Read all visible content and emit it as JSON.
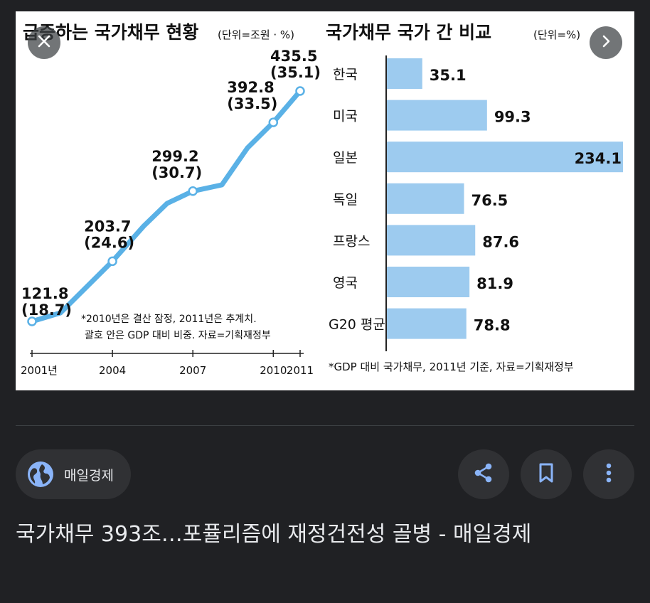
{
  "left_chart": {
    "title": "급증하는 국가채무 현황",
    "unit": "(단위=조원 · %)",
    "note_line1": "*2010년은 결산 잠정, 2011년은 추계치.",
    "note_line2": "괄호 안은 GDP 대비 비중. 자료=기획재정부",
    "x_ticks": [
      "2001년",
      "2004",
      "2007",
      "2010",
      "2011"
    ],
    "points": [
      {
        "year": 2001,
        "value": 121.8,
        "value_label": "121.8",
        "pct_label": "(18.7)"
      },
      {
        "year": 2004,
        "value": 203.7,
        "value_label": "203.7",
        "pct_label": "(24.6)"
      },
      {
        "year": 2007,
        "value": 299.2,
        "value_label": "299.2",
        "pct_label": "(30.7)"
      },
      {
        "year": 2010,
        "value": 392.8,
        "value_label": "392.8",
        "pct_label": "(33.5)"
      },
      {
        "year": 2011,
        "value": 435.5,
        "value_label": "435.5",
        "pct_label": "(35.1)"
      }
    ],
    "line_color": "#5ab1e6"
  },
  "right_chart": {
    "title": "국가채무 국가 간 비교",
    "unit": "(단위=%)",
    "note": "*GDP 대비 국가채무, 2011년 기준, 자료=기획재정부",
    "bar_color": "#9dcbef",
    "bars": [
      {
        "country": "한국",
        "value": 35.1,
        "label": "35.1"
      },
      {
        "country": "미국",
        "value": 99.3,
        "label": "99.3"
      },
      {
        "country": "일본",
        "value": 234.1,
        "label": "234.1"
      },
      {
        "country": "독일",
        "value": 76.5,
        "label": "76.5"
      },
      {
        "country": "프랑스",
        "value": 87.6,
        "label": "87.6"
      },
      {
        "country": "영국",
        "value": 81.9,
        "label": "81.9"
      },
      {
        "country": "G20 평균",
        "value": 78.8,
        "label": "78.8"
      }
    ]
  },
  "chart_data": [
    {
      "type": "line",
      "title": "급증하는 국가채무 현황",
      "subtitle": "(단위=조원 · %)",
      "x": [
        2001,
        2004,
        2007,
        2010,
        2011
      ],
      "series": [
        {
          "values": [
            121.8,
            203.7,
            299.2,
            392.8,
            435.5
          ]
        }
      ],
      "gdp_share_pct": [
        18.7,
        24.6,
        30.7,
        33.5,
        35.1
      ],
      "xlabel": "",
      "ylabel": "",
      "annotations": [
        "*2010년은 결산 잠정, 2011년은 추계치.",
        "괄호 안은 GDP 대비 비중. 자료=기획재정부"
      ]
    },
    {
      "type": "bar",
      "orientation": "horizontal",
      "title": "국가채무 국가 간 비교",
      "subtitle": "(단위=%)",
      "categories": [
        "한국",
        "미국",
        "일본",
        "독일",
        "프랑스",
        "영국",
        "G20 평균"
      ],
      "values": [
        35.1,
        99.3,
        234.1,
        76.5,
        87.6,
        81.9,
        78.8
      ],
      "xlabel": "",
      "ylabel": "",
      "annotations": [
        "*GDP 대비 국가채무, 2011년 기준, 자료=기획재정부"
      ]
    }
  ],
  "viewer": {
    "close_icon": "close-icon",
    "next_icon": "chevron-right-icon"
  },
  "source": {
    "name": "매일경제",
    "icon": "globe-icon",
    "accent": "#8ab4f8"
  },
  "actions": {
    "share_icon": "share-icon",
    "save_icon": "bookmark-icon",
    "more_icon": "more-vert-icon"
  },
  "title": "국가채무 393조…포퓰리즘에 재정건전성 골병 - 매일경제"
}
